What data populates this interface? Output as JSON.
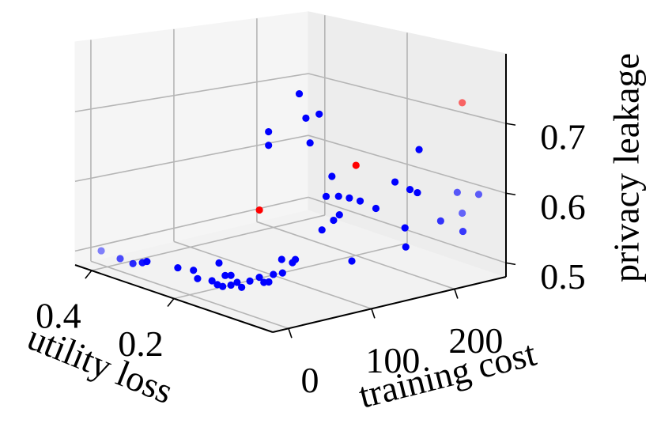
{
  "chart_data": {
    "type": "scatter3d",
    "xlabel": "utility loss",
    "ylabel": "training cost",
    "zlabel": "privacy leakage",
    "xlim": [
      -0.04,
      0.44
    ],
    "ylim": [
      -19,
      262
    ],
    "zlim": [
      0.48,
      0.8
    ],
    "xticks": [
      0.2,
      0.4
    ],
    "yticks": [
      0,
      100,
      200
    ],
    "zticks": [
      0.5,
      0.6,
      0.7
    ],
    "grid": true,
    "series": [
      {
        "color": "#0000ff",
        "x": [
          0.433,
          0.387,
          0.356,
          0.333,
          0.322,
          0.247,
          0.209,
          0.199,
          0.164,
          0.147,
          0.132,
          0.118,
          0.151,
          0.138,
          0.118,
          0.103,
          0.092,
          0.072,
          0.049,
          0.038,
          0.026,
          0.015,
          0.021,
          0.023,
          0.025,
          0.018,
          0.2,
          0.2,
          0.2,
          0.2,
          0.2,
          0.2,
          0.032,
          0.032,
          0.032,
          0.032,
          0.032,
          0.032,
          0.032,
          0.032,
          0.032,
          0.032,
          0.032,
          0.032,
          0.032,
          0.032,
          0.032,
          0.032,
          0.032,
          -0.016,
          0.032,
          0.032,
          -0.016
        ],
        "y": [
          9,
          9,
          9,
          9,
          9,
          9,
          9,
          9,
          9,
          9,
          9,
          9,
          9,
          9,
          9,
          9,
          9,
          9,
          9,
          9,
          9,
          9,
          23,
          23,
          37,
          37,
          132,
          140,
          156,
          95,
          95,
          145,
          88,
          96,
          81,
          109,
          122,
          141,
          97,
          90,
          76,
          112,
          164,
          182,
          191,
          176,
          177,
          193,
          239,
          241,
          245,
          219,
          222
        ],
        "z": [
          0.494,
          0.492,
          0.491,
          0.497,
          0.501,
          0.507,
          0.511,
          0.501,
          0.505,
          0.534,
          0.519,
          0.522,
          0.502,
          0.502,
          0.508,
          0.515,
          0.51,
          0.523,
          0.533,
          0.528,
          0.531,
          0.544,
          0.541,
          0.56,
          0.551,
          0.557,
          0.739,
          0.701,
          0.703,
          0.692,
          0.672,
          0.663,
          0.66,
          0.629,
          0.633,
          0.623,
          0.615,
          0.599,
          0.602,
          0.596,
          0.586,
          0.531,
          0.631,
          0.615,
          0.608,
          0.561,
          0.533,
          0.67,
          0.595,
          0.6,
          0.563,
          0.559,
          0.552
        ]
      },
      {
        "color": "#ff0000",
        "x": [
          0.2,
          0.032,
          0.032
        ],
        "y": [
          84,
          117,
          245
        ],
        "z": [
          0.58,
          0.668,
          0.724
        ]
      }
    ]
  }
}
